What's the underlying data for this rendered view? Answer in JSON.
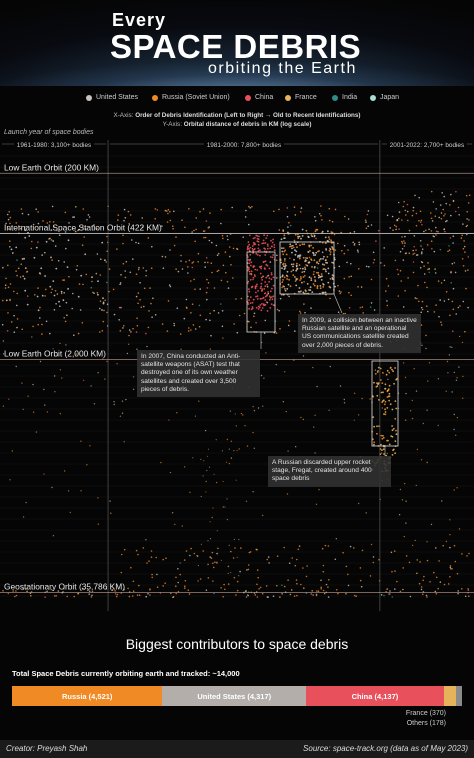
{
  "header": {
    "title_line1": "Every",
    "title_line2": "SPACE DEBRIS",
    "title_line3": "orbiting the Earth"
  },
  "legend": [
    {
      "name": "United States",
      "color": "#c9c3bd"
    },
    {
      "name": "Russia (Soviet Union)",
      "color": "#f08a24"
    },
    {
      "name": "China",
      "color": "#e8505b"
    },
    {
      "name": "France",
      "color": "#e6b35a"
    },
    {
      "name": "India",
      "color": "#2f8c86"
    },
    {
      "name": "Japan",
      "color": "#a9dcd2"
    }
  ],
  "axis_desc": {
    "x_prefix": "X-Axis:",
    "x_text": "Order of Debris Identification (Left to Right → Old to Recent Identifications)",
    "y_prefix": "Y-Axis:",
    "y_text": "Orbital distance of debris in KM (log scale)"
  },
  "chart_data": {
    "type": "scatter",
    "title": "Every SPACE DEBRIS orbiting the Earth",
    "x_axis_title": "Launch year of space bodies",
    "xlabel": "Order of Debris Identification (Left to Right → Old to Recent Identifications)",
    "ylabel": "Orbital distance of debris in KM (log scale)",
    "y_scale": "log",
    "x_groups": [
      {
        "label": "1961-1980: 3,100+ bodies",
        "range": [
          0,
          3100
        ]
      },
      {
        "label": "1981-2000: 7,800+ bodies",
        "range": [
          3100,
          10900
        ]
      },
      {
        "label": "2001-2022: 2,700+ bodies",
        "range": [
          10900,
          13600
        ]
      }
    ],
    "reference_lines": [
      {
        "label": "Low Earth Orbit (200 KM)",
        "km": 200
      },
      {
        "label": "International Space Station Orbit (422 KM)",
        "km": 422
      },
      {
        "label": "Low Earth Orbit (2,000 KM)",
        "km": 2000
      },
      {
        "label": "Geostationary Orbit (35,786 KM)",
        "km": 35786
      }
    ],
    "annotations": [
      {
        "text": "In 2009, a collision between an inactive Russian satellite and an operational US communications satellite created over 2,000 pieces of debris."
      },
      {
        "text": "In 2007, China conducted an Anti-satellite weapons (ASAT) test that destroyed one of its own weather satellites and created over 3,500 pieces of debris."
      },
      {
        "text": "A Russian discarded upper rocket stage, Fregat, created around 400 space debris"
      }
    ],
    "series": [
      {
        "name": "United States",
        "color": "#c9c3bd"
      },
      {
        "name": "Russia (Soviet Union)",
        "color": "#f08a24"
      },
      {
        "name": "China",
        "color": "#e8505b"
      },
      {
        "name": "France",
        "color": "#e6b35a"
      },
      {
        "name": "India",
        "color": "#2f8c86"
      },
      {
        "name": "Japan",
        "color": "#a9dcd2"
      }
    ]
  },
  "contributors": {
    "title": "Biggest contributors to space debris",
    "total_label": "Total Space Debris currently orbiting earth and tracked:  ~14,000",
    "chart_data": {
      "type": "bar",
      "orientation": "horizontal-stacked",
      "categories": [
        "Russia",
        "United States",
        "China",
        "France",
        "Others"
      ],
      "values": [
        4521,
        4317,
        4137,
        370,
        178
      ],
      "labels": [
        "Russia (4,521)",
        "United States (4,317)",
        "China (4,137)",
        "France (370)",
        "Others (178)"
      ],
      "colors": [
        "#f08a24",
        "#b3aeaa",
        "#e8505b",
        "#e6b35a",
        "#8a8a8a"
      ]
    }
  },
  "footer": {
    "creator": "Creator: Preyash Shah",
    "source": "Source: space-track.org (data as of May 2023)"
  }
}
